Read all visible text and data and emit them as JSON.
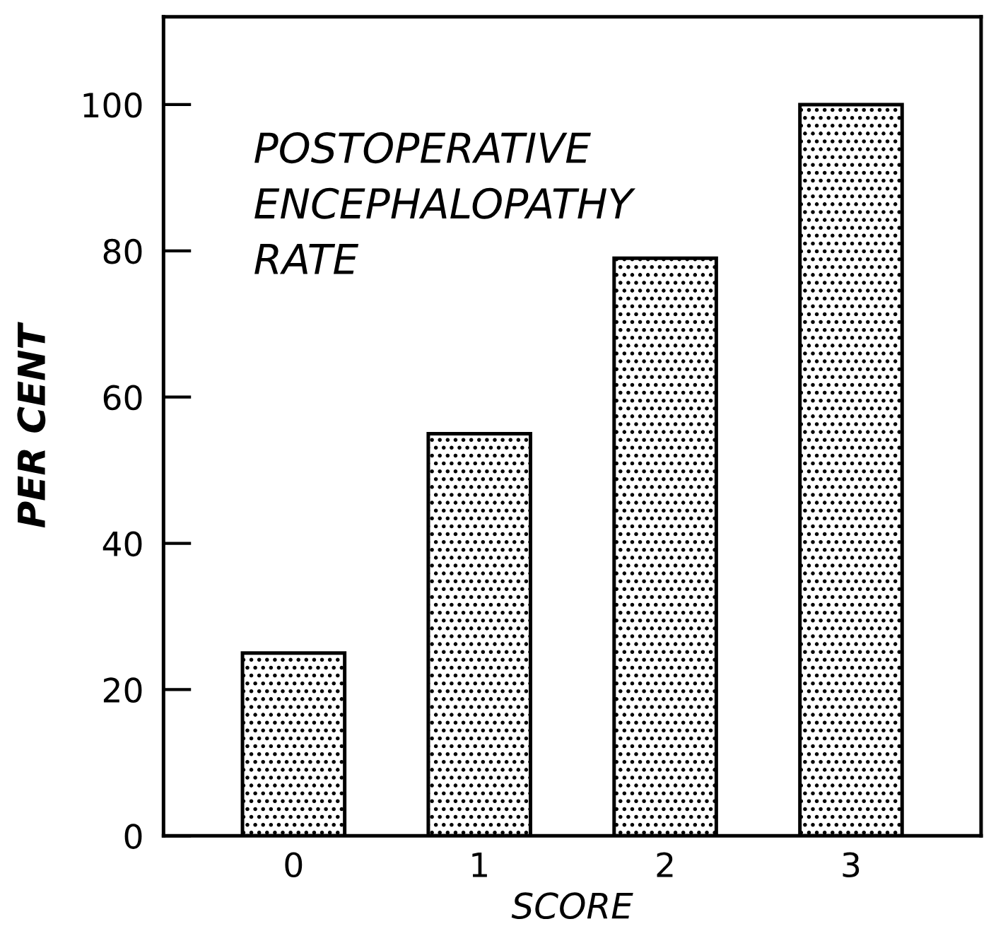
{
  "chart_data": {
    "type": "bar",
    "title": "POSTOPERATIVE\nENCEPHALOPATHY\nRATE",
    "xlabel": "SCORE",
    "ylabel": "PER CENT",
    "categories": [
      "0",
      "1",
      "2",
      "3"
    ],
    "values": [
      25,
      55,
      79,
      100
    ],
    "ylim": [
      0,
      112
    ],
    "yticks": [
      0,
      20,
      40,
      60,
      80,
      100
    ],
    "grid": false,
    "legend": false
  }
}
